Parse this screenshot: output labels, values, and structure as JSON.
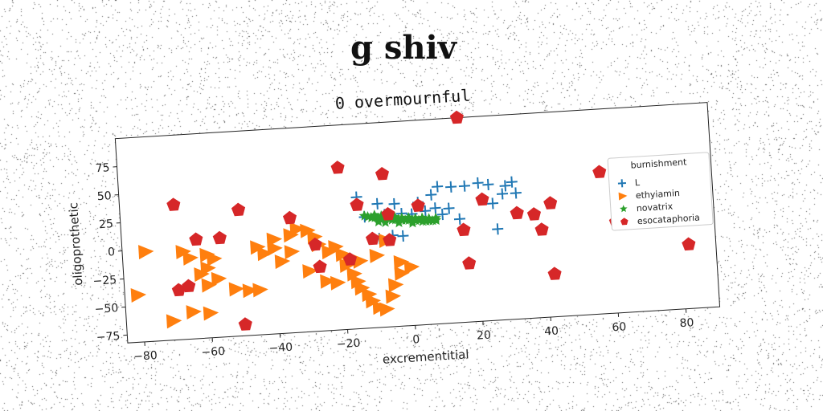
{
  "figure": {
    "suptitle": "g shiv"
  },
  "chart_data": {
    "type": "scatter",
    "title": "0 overmournful",
    "xlabel": "excrementitial",
    "ylabel": "oligoprothetic",
    "xlim": [
      -85,
      90
    ],
    "ylim": [
      -82,
      100
    ],
    "xticks": [
      -80,
      -60,
      -40,
      -20,
      0,
      20,
      40,
      60,
      80
    ],
    "yticks": [
      -75,
      -50,
      -25,
      0,
      25,
      50,
      75
    ],
    "grid": false,
    "legend": {
      "title": "burnishment",
      "position": "right"
    },
    "colors": {
      "L": "#1f77b4",
      "ethyiamin": "#ff7f0e",
      "novatrix": "#2ca02c",
      "esocataphoria": "#d62728"
    },
    "series": [
      {
        "name": "L",
        "marker": "plus",
        "points": [
          [
            -15,
            35
          ],
          [
            -9,
            28
          ],
          [
            -4,
            27
          ],
          [
            -2,
            -2
          ],
          [
            -5,
            -1
          ],
          [
            -9,
            -3
          ],
          [
            -13,
            17
          ],
          [
            -7,
            18
          ],
          [
            -2,
            18
          ],
          [
            1,
            17
          ],
          [
            5,
            19
          ],
          [
            8,
            21
          ],
          [
            3,
            27
          ],
          [
            7,
            33
          ],
          [
            9,
            40
          ],
          [
            13,
            39
          ],
          [
            17,
            39
          ],
          [
            21,
            41
          ],
          [
            24,
            39
          ],
          [
            25,
            22
          ],
          [
            28,
            30
          ],
          [
            29,
            37
          ],
          [
            31,
            40
          ],
          [
            32,
            30
          ],
          [
            12,
            20
          ],
          [
            15,
            10
          ],
          [
            10,
            15
          ],
          [
            26,
            -1
          ]
        ]
      },
      {
        "name": "ethyiamin",
        "marker": "triangle-right",
        "points": [
          [
            -78,
            -2
          ],
          [
            -81,
            -40
          ],
          [
            -71,
            -65
          ],
          [
            -65,
            -58
          ],
          [
            -60,
            -60
          ],
          [
            -67,
            -4
          ],
          [
            -65,
            -10
          ],
          [
            -60,
            -8
          ],
          [
            -58,
            -12
          ],
          [
            -60,
            -20
          ],
          [
            -62,
            -25
          ],
          [
            -57,
            -30
          ],
          [
            -52,
            -40
          ],
          [
            -48,
            -42
          ],
          [
            -45,
            -42
          ],
          [
            -40,
            2
          ],
          [
            -35,
            5
          ],
          [
            -33,
            10
          ],
          [
            -30,
            8
          ],
          [
            -28,
            2
          ],
          [
            -27,
            -5
          ],
          [
            -24,
            -12
          ],
          [
            -22,
            -8
          ],
          [
            -20,
            -15
          ],
          [
            -18,
            -18
          ],
          [
            -19,
            -25
          ],
          [
            -17,
            -33
          ],
          [
            -16,
            -40
          ],
          [
            -15,
            -46
          ],
          [
            -13,
            -52
          ],
          [
            -12,
            -58
          ],
          [
            -10,
            -64
          ],
          [
            -8,
            -66
          ],
          [
            -6,
            -55
          ],
          [
            -5,
            -45
          ],
          [
            -3,
            -35
          ],
          [
            -40,
            -6
          ],
          [
            -43,
            -10
          ],
          [
            -45,
            -4
          ],
          [
            -35,
            -10
          ],
          [
            -38,
            -18
          ],
          [
            -25,
            -38
          ],
          [
            -22,
            -40
          ],
          [
            -15,
            -22
          ],
          [
            -10,
            -18
          ],
          [
            -7,
            -5
          ],
          [
            -3,
            -25
          ],
          [
            0,
            -30
          ],
          [
            -30,
            -28
          ],
          [
            -60,
            -35
          ]
        ]
      },
      {
        "name": "novatrix",
        "marker": "star",
        "points": [
          [
            -13,
            18
          ],
          [
            -12,
            17
          ],
          [
            -11,
            16
          ],
          [
            -10,
            16
          ],
          [
            -9,
            15
          ],
          [
            -8,
            15
          ],
          [
            -7,
            14
          ],
          [
            -6,
            14
          ],
          [
            -5,
            13
          ],
          [
            -4,
            13
          ],
          [
            -3,
            13
          ],
          [
            -2,
            12
          ],
          [
            -1,
            12
          ],
          [
            0,
            12
          ],
          [
            1,
            11
          ],
          [
            2,
            11
          ],
          [
            3,
            11
          ],
          [
            4,
            10
          ],
          [
            5,
            10
          ],
          [
            6,
            10
          ],
          [
            7,
            10
          ],
          [
            8,
            10
          ],
          [
            -10,
            18
          ],
          [
            -8,
            17
          ],
          [
            -6,
            16
          ],
          [
            -4,
            15
          ],
          [
            -2,
            14
          ],
          [
            0,
            14
          ],
          [
            2,
            13
          ],
          [
            4,
            13
          ],
          [
            6,
            12
          ],
          [
            8,
            12
          ],
          [
            -9,
            12
          ],
          [
            -7,
            11
          ],
          [
            -3,
            10
          ],
          [
            1,
            9
          ]
        ]
      },
      {
        "name": "esocataphoria",
        "marker": "pentagon",
        "points": [
          [
            -69,
            38
          ],
          [
            -63,
            6
          ],
          [
            -56,
            6
          ],
          [
            -50,
            30
          ],
          [
            -35,
            20
          ],
          [
            -20,
            62
          ],
          [
            -15,
            28
          ],
          [
            -7,
            54
          ],
          [
            -6,
            18
          ],
          [
            3,
            24
          ],
          [
            -11,
            -3
          ],
          [
            -6,
            -5
          ],
          [
            -28,
            -5
          ],
          [
            -27,
            -25
          ],
          [
            -18,
            -20
          ],
          [
            -69,
            -38
          ],
          [
            -66,
            -35
          ],
          [
            -50,
            -72
          ],
          [
            16,
            100
          ],
          [
            16,
            0
          ],
          [
            17,
            -30
          ],
          [
            22,
            26
          ],
          [
            32,
            12
          ],
          [
            37,
            10
          ],
          [
            42,
            19
          ],
          [
            39,
            -4
          ],
          [
            42,
            -44
          ],
          [
            57,
            44
          ],
          [
            61,
            -1
          ],
          [
            82,
            -25
          ]
        ]
      }
    ]
  }
}
